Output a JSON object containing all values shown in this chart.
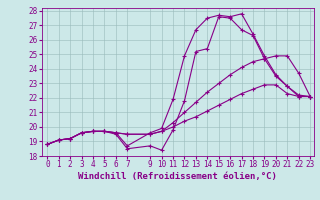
{
  "xlabel": "Windchill (Refroidissement éolien,°C)",
  "xlim": [
    -0.5,
    23.3
  ],
  "ylim": [
    18,
    28.2
  ],
  "yticks": [
    18,
    19,
    20,
    21,
    22,
    23,
    24,
    25,
    26,
    27,
    28
  ],
  "xticks": [
    0,
    1,
    2,
    3,
    4,
    5,
    6,
    7,
    9,
    10,
    11,
    12,
    13,
    14,
    15,
    16,
    17,
    18,
    19,
    20,
    21,
    22,
    23
  ],
  "background_color": "#cce8e8",
  "line_color": "#880088",
  "grid_color": "#99bbbb",
  "lines": [
    {
      "x": [
        0,
        1,
        2,
        3,
        4,
        5,
        6,
        7,
        9,
        10,
        11,
        12,
        13,
        14,
        15,
        16,
        17,
        18,
        19,
        20,
        21,
        22,
        23
      ],
      "y": [
        18.8,
        19.1,
        19.2,
        19.6,
        19.7,
        19.7,
        19.6,
        18.7,
        19.6,
        19.9,
        21.9,
        24.9,
        26.7,
        27.5,
        27.7,
        27.6,
        27.8,
        26.4,
        24.9,
        23.6,
        22.8,
        22.1,
        22.1
      ]
    },
    {
      "x": [
        0,
        1,
        2,
        3,
        4,
        5,
        6,
        7,
        9,
        10,
        11,
        12,
        13,
        14,
        15,
        16,
        17,
        18,
        19,
        20,
        21,
        22,
        23
      ],
      "y": [
        18.8,
        19.1,
        19.2,
        19.6,
        19.7,
        19.7,
        19.6,
        19.5,
        19.5,
        19.7,
        20.3,
        21.0,
        21.7,
        22.4,
        23.0,
        23.6,
        24.1,
        24.5,
        24.7,
        24.9,
        24.9,
        23.7,
        22.1
      ]
    },
    {
      "x": [
        0,
        1,
        2,
        3,
        4,
        5,
        6,
        7,
        9,
        10,
        11,
        12,
        13,
        14,
        15,
        16,
        17,
        18,
        19,
        20,
        21,
        22,
        23
      ],
      "y": [
        18.8,
        19.1,
        19.2,
        19.6,
        19.7,
        19.7,
        19.6,
        19.5,
        19.5,
        19.7,
        20.0,
        20.4,
        20.7,
        21.1,
        21.5,
        21.9,
        22.3,
        22.6,
        22.9,
        22.9,
        22.3,
        22.1,
        22.1
      ]
    },
    {
      "x": [
        0,
        1,
        2,
        3,
        4,
        5,
        6,
        7,
        9,
        10,
        11,
        12,
        13,
        14,
        15,
        16,
        17,
        18,
        19,
        20,
        21,
        22,
        23
      ],
      "y": [
        18.8,
        19.1,
        19.2,
        19.6,
        19.7,
        19.7,
        19.5,
        18.5,
        18.7,
        18.4,
        19.8,
        21.8,
        25.2,
        25.4,
        27.6,
        27.5,
        26.7,
        26.3,
        24.7,
        23.5,
        22.8,
        22.2,
        22.1
      ]
    }
  ],
  "marker": "+",
  "markersize": 3,
  "linewidth": 0.8,
  "label_fontsize": 6.5,
  "tick_fontsize": 5.5
}
